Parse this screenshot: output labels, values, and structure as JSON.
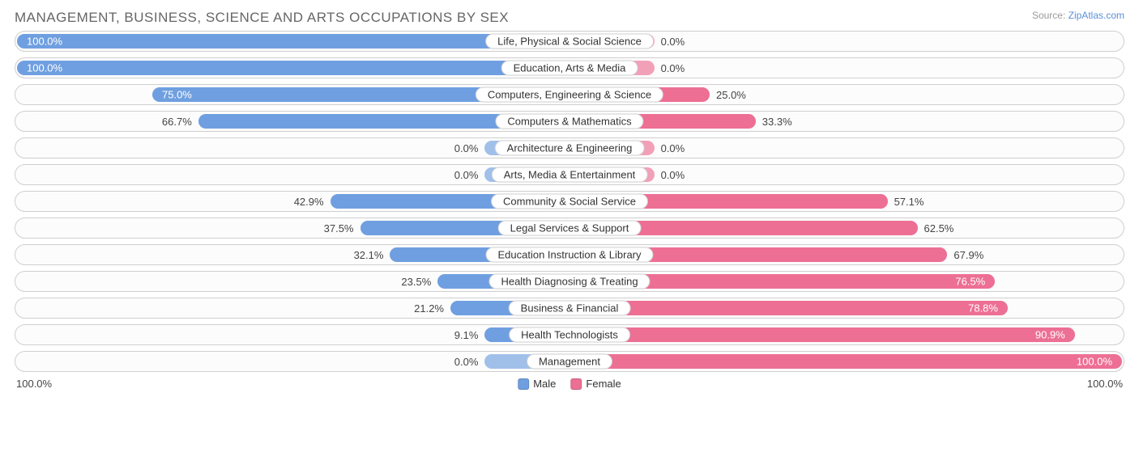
{
  "title": "MANAGEMENT, BUSINESS, SCIENCE AND ARTS OCCUPATIONS BY SEX",
  "source_prefix": "Source: ",
  "source_link_text": "ZipAtlas.com",
  "chart": {
    "type": "diverging-bar",
    "background_color": "#ffffff",
    "track_border_color": "#cfcfcf",
    "track_background": "#fcfcfc",
    "label_fontsize": 13,
    "title_fontsize": 17,
    "title_color": "#666666",
    "value_color": "#444444",
    "min_bar_width_pct": 15,
    "inside_label_threshold_pct": 70,
    "axis": {
      "left_label": "100.0%",
      "right_label": "100.0%"
    },
    "legend": [
      {
        "label": "Male",
        "color": "#6f9fe0"
      },
      {
        "label": "Female",
        "color": "#ed6f94"
      }
    ],
    "rows": [
      {
        "category": "Life, Physical & Social Science",
        "male": 100.0,
        "female": 0.0
      },
      {
        "category": "Education, Arts & Media",
        "male": 100.0,
        "female": 0.0
      },
      {
        "category": "Computers, Engineering & Science",
        "male": 75.0,
        "female": 25.0
      },
      {
        "category": "Computers & Mathematics",
        "male": 66.7,
        "female": 33.3
      },
      {
        "category": "Architecture & Engineering",
        "male": 0.0,
        "female": 0.0
      },
      {
        "category": "Arts, Media & Entertainment",
        "male": 0.0,
        "female": 0.0
      },
      {
        "category": "Community & Social Service",
        "male": 42.9,
        "female": 57.1
      },
      {
        "category": "Legal Services & Support",
        "male": 37.5,
        "female": 62.5
      },
      {
        "category": "Education Instruction & Library",
        "male": 32.1,
        "female": 67.9
      },
      {
        "category": "Health Diagnosing & Treating",
        "male": 23.5,
        "female": 76.5
      },
      {
        "category": "Business & Financial",
        "male": 21.2,
        "female": 78.8
      },
      {
        "category": "Health Technologists",
        "male": 9.1,
        "female": 90.9
      },
      {
        "category": "Management",
        "male": 0.0,
        "female": 100.0
      }
    ]
  }
}
